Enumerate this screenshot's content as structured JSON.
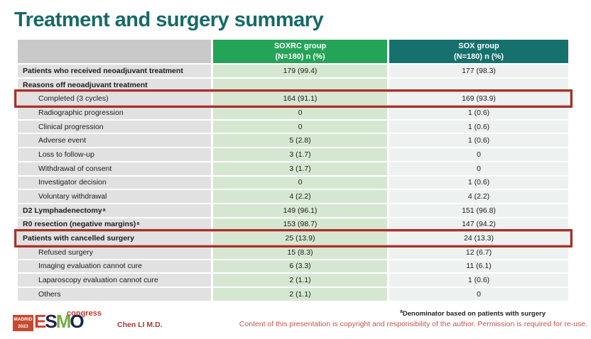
{
  "slide": {
    "title": "Treatment and surgery summary"
  },
  "table": {
    "header": {
      "empty": "",
      "soxrc_line1": "SOXRC group",
      "soxrc_line2": "(N=180)  n (%)",
      "sox_line1": "SOX group",
      "sox_line2": "(N=180)  n (%)"
    },
    "rows": [
      {
        "label": "Patients who received neoadjuvant treatment",
        "bold": true,
        "indent": false,
        "soxrc": "179 (99.4)",
        "sox": "177 (98.3)",
        "highlight": false
      },
      {
        "label": "Reasons off neoadjuvant treatment",
        "bold": true,
        "indent": false,
        "soxrc": "",
        "sox": "",
        "highlight": false
      },
      {
        "label": "Completed (3 cycles)",
        "bold": false,
        "indent": true,
        "soxrc": "164 (91.1)",
        "sox": "169 (93.9)",
        "highlight": true
      },
      {
        "label": "Radiographic progression",
        "bold": false,
        "indent": true,
        "soxrc": "0",
        "sox": "1 (0.6)",
        "highlight": false
      },
      {
        "label": "Clinical progression",
        "bold": false,
        "indent": true,
        "soxrc": "0",
        "sox": "1 (0.6)",
        "highlight": false
      },
      {
        "label": "Adverse event",
        "bold": false,
        "indent": true,
        "soxrc": "5 (2.8)",
        "sox": "1 (0.6)",
        "highlight": false
      },
      {
        "label": "Loss to follow-up",
        "bold": false,
        "indent": true,
        "soxrc": "3 (1.7)",
        "sox": "0",
        "highlight": false
      },
      {
        "label": "Withdrawal of consent",
        "bold": false,
        "indent": true,
        "soxrc": "3 (1.7)",
        "sox": "0",
        "highlight": false
      },
      {
        "label": "Investigator decision",
        "bold": false,
        "indent": true,
        "soxrc": "0",
        "sox": "1 (0.6)",
        "highlight": false
      },
      {
        "label": "Voluntary withdrawal",
        "bold": false,
        "indent": true,
        "soxrc": "4 (2.2)",
        "sox": "4 (2.2)",
        "highlight": false
      },
      {
        "label": "D2 Lymphadenectomy",
        "sup": "a",
        "bold": true,
        "indent": false,
        "soxrc": "149 (96.1)",
        "sox": "151 (96.8)",
        "highlight": false
      },
      {
        "label": "R0 resection (negative margins)",
        "sup": "a",
        "bold": true,
        "indent": false,
        "soxrc": "153 (98.7)",
        "sox": "147 (94.2)",
        "highlight": false
      },
      {
        "label": "Patients with cancelled surgery",
        "bold": true,
        "indent": false,
        "soxrc": "25 (13.9)",
        "sox": "24 (13.3)",
        "highlight": true
      },
      {
        "label": "Refused surgery",
        "bold": false,
        "indent": true,
        "soxrc": "15 (8.3)",
        "sox": "12 (6.7)",
        "highlight": false
      },
      {
        "label": "Imaging evaluation cannot cure",
        "bold": false,
        "indent": true,
        "soxrc": "6 (3.3)",
        "sox": "11 (6.1)",
        "highlight": false
      },
      {
        "label": "Laparoscopy evaluation cannot cure",
        "bold": false,
        "indent": true,
        "soxrc": "2 (1.1)",
        "sox": "1 (0.6)",
        "highlight": false
      },
      {
        "label": "Others",
        "bold": false,
        "indent": true,
        "soxrc": "2 (1.1)",
        "sox": "0",
        "highlight": false
      }
    ]
  },
  "footer": {
    "footnote_sup": "a",
    "footnote_text": "Denominator based on patients with surgery",
    "copyright": "Content of this presentation is copyright and responsibility of the author. Permission is required for re-use.",
    "author": "Chen LI M.D.",
    "logo": {
      "city": "MADRID",
      "year": "2023",
      "letters": [
        "E",
        "S",
        "M",
        "O"
      ],
      "congress": "congress"
    }
  },
  "colors": {
    "title": "#166a66",
    "soxrc_header": "#24a457",
    "sox_header": "#16706e",
    "label_cell": "#e1e1e1",
    "soxrc_cell": "#d6e7d1",
    "sox_cell": "#edf2f0",
    "highlight_border": "#a2332b",
    "copyright_red": "#c2574e"
  }
}
